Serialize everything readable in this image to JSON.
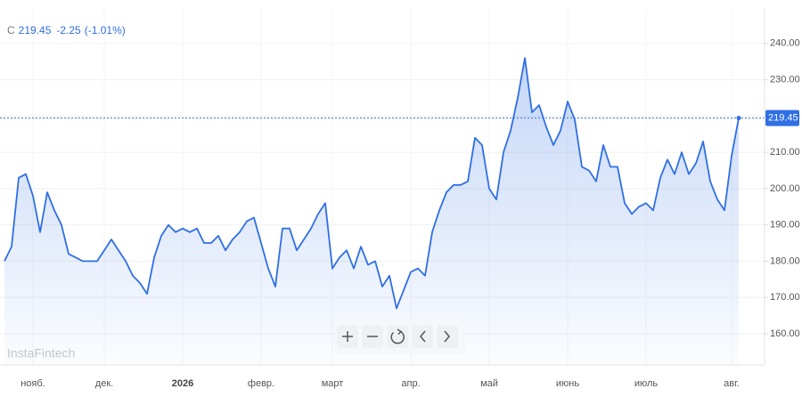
{
  "chart_data": {
    "type": "line",
    "change_label": "-2.25",
    "change_pct_label": "(-1.01%)",
    "watermark": "InstaFintech",
    "categories": [
      null,
      null,
      null,
      null,
      "нояб.",
      null,
      null,
      null,
      null,
      null,
      null,
      null,
      null,
      null,
      "дек.",
      null,
      null,
      null,
      null,
      null,
      null,
      null,
      null,
      null,
      null,
      "2026",
      null,
      null,
      null,
      null,
      null,
      null,
      null,
      null,
      null,
      null,
      "февр.",
      null,
      null,
      null,
      null,
      null,
      null,
      null,
      null,
      null,
      "март",
      null,
      null,
      null,
      null,
      null,
      null,
      null,
      null,
      null,
      null,
      "апр.",
      null,
      null,
      null,
      null,
      null,
      null,
      null,
      null,
      null,
      null,
      "май",
      null,
      null,
      null,
      null,
      null,
      null,
      null,
      null,
      null,
      null,
      "июнь",
      null,
      null,
      null,
      null,
      null,
      null,
      null,
      null,
      null,
      null,
      "июль",
      null,
      null,
      null,
      null,
      null,
      null,
      null,
      null,
      null,
      null,
      null,
      "авг.",
      null
    ],
    "series": [
      {
        "name": "C",
        "color": "#2f6fe4",
        "values": [
          180,
          184,
          203,
          204,
          198,
          188,
          199,
          194,
          190,
          182,
          181,
          180,
          180,
          180,
          183,
          186,
          183,
          180,
          176,
          174,
          171,
          181,
          187,
          190,
          188,
          189,
          188,
          189,
          185,
          185,
          187,
          183,
          186,
          188,
          191,
          192,
          185,
          178,
          173,
          189,
          189,
          183,
          186,
          189,
          193,
          196,
          178,
          181,
          183,
          178,
          184,
          179,
          180,
          173,
          176,
          167,
          172,
          177,
          178,
          176,
          188,
          194,
          199,
          201,
          201,
          202,
          214,
          212,
          200,
          197,
          210,
          216,
          225,
          236,
          221,
          223,
          217,
          212,
          216,
          224,
          219,
          206,
          205,
          202,
          212,
          206,
          206,
          196,
          193,
          195,
          196,
          194,
          203,
          208,
          204,
          210,
          204,
          207,
          213,
          202,
          197,
          194,
          209,
          219.45
        ]
      }
    ],
    "ylim": [
      151.4,
      248.3
    ],
    "yticks": [
      {
        "value": 160,
        "label": "160.00"
      },
      {
        "value": 170,
        "label": "170.00"
      },
      {
        "value": 180,
        "label": "180.00"
      },
      {
        "value": 190,
        "label": "190.00"
      },
      {
        "value": 200,
        "label": "200.00"
      },
      {
        "value": 210,
        "label": "210.00"
      },
      {
        "value": 220,
        "label": "220.00"
      },
      {
        "value": 230,
        "label": "230.00"
      },
      {
        "value": 240,
        "label": "240.00"
      }
    ],
    "grid": true,
    "last_price_line": true
  }
}
